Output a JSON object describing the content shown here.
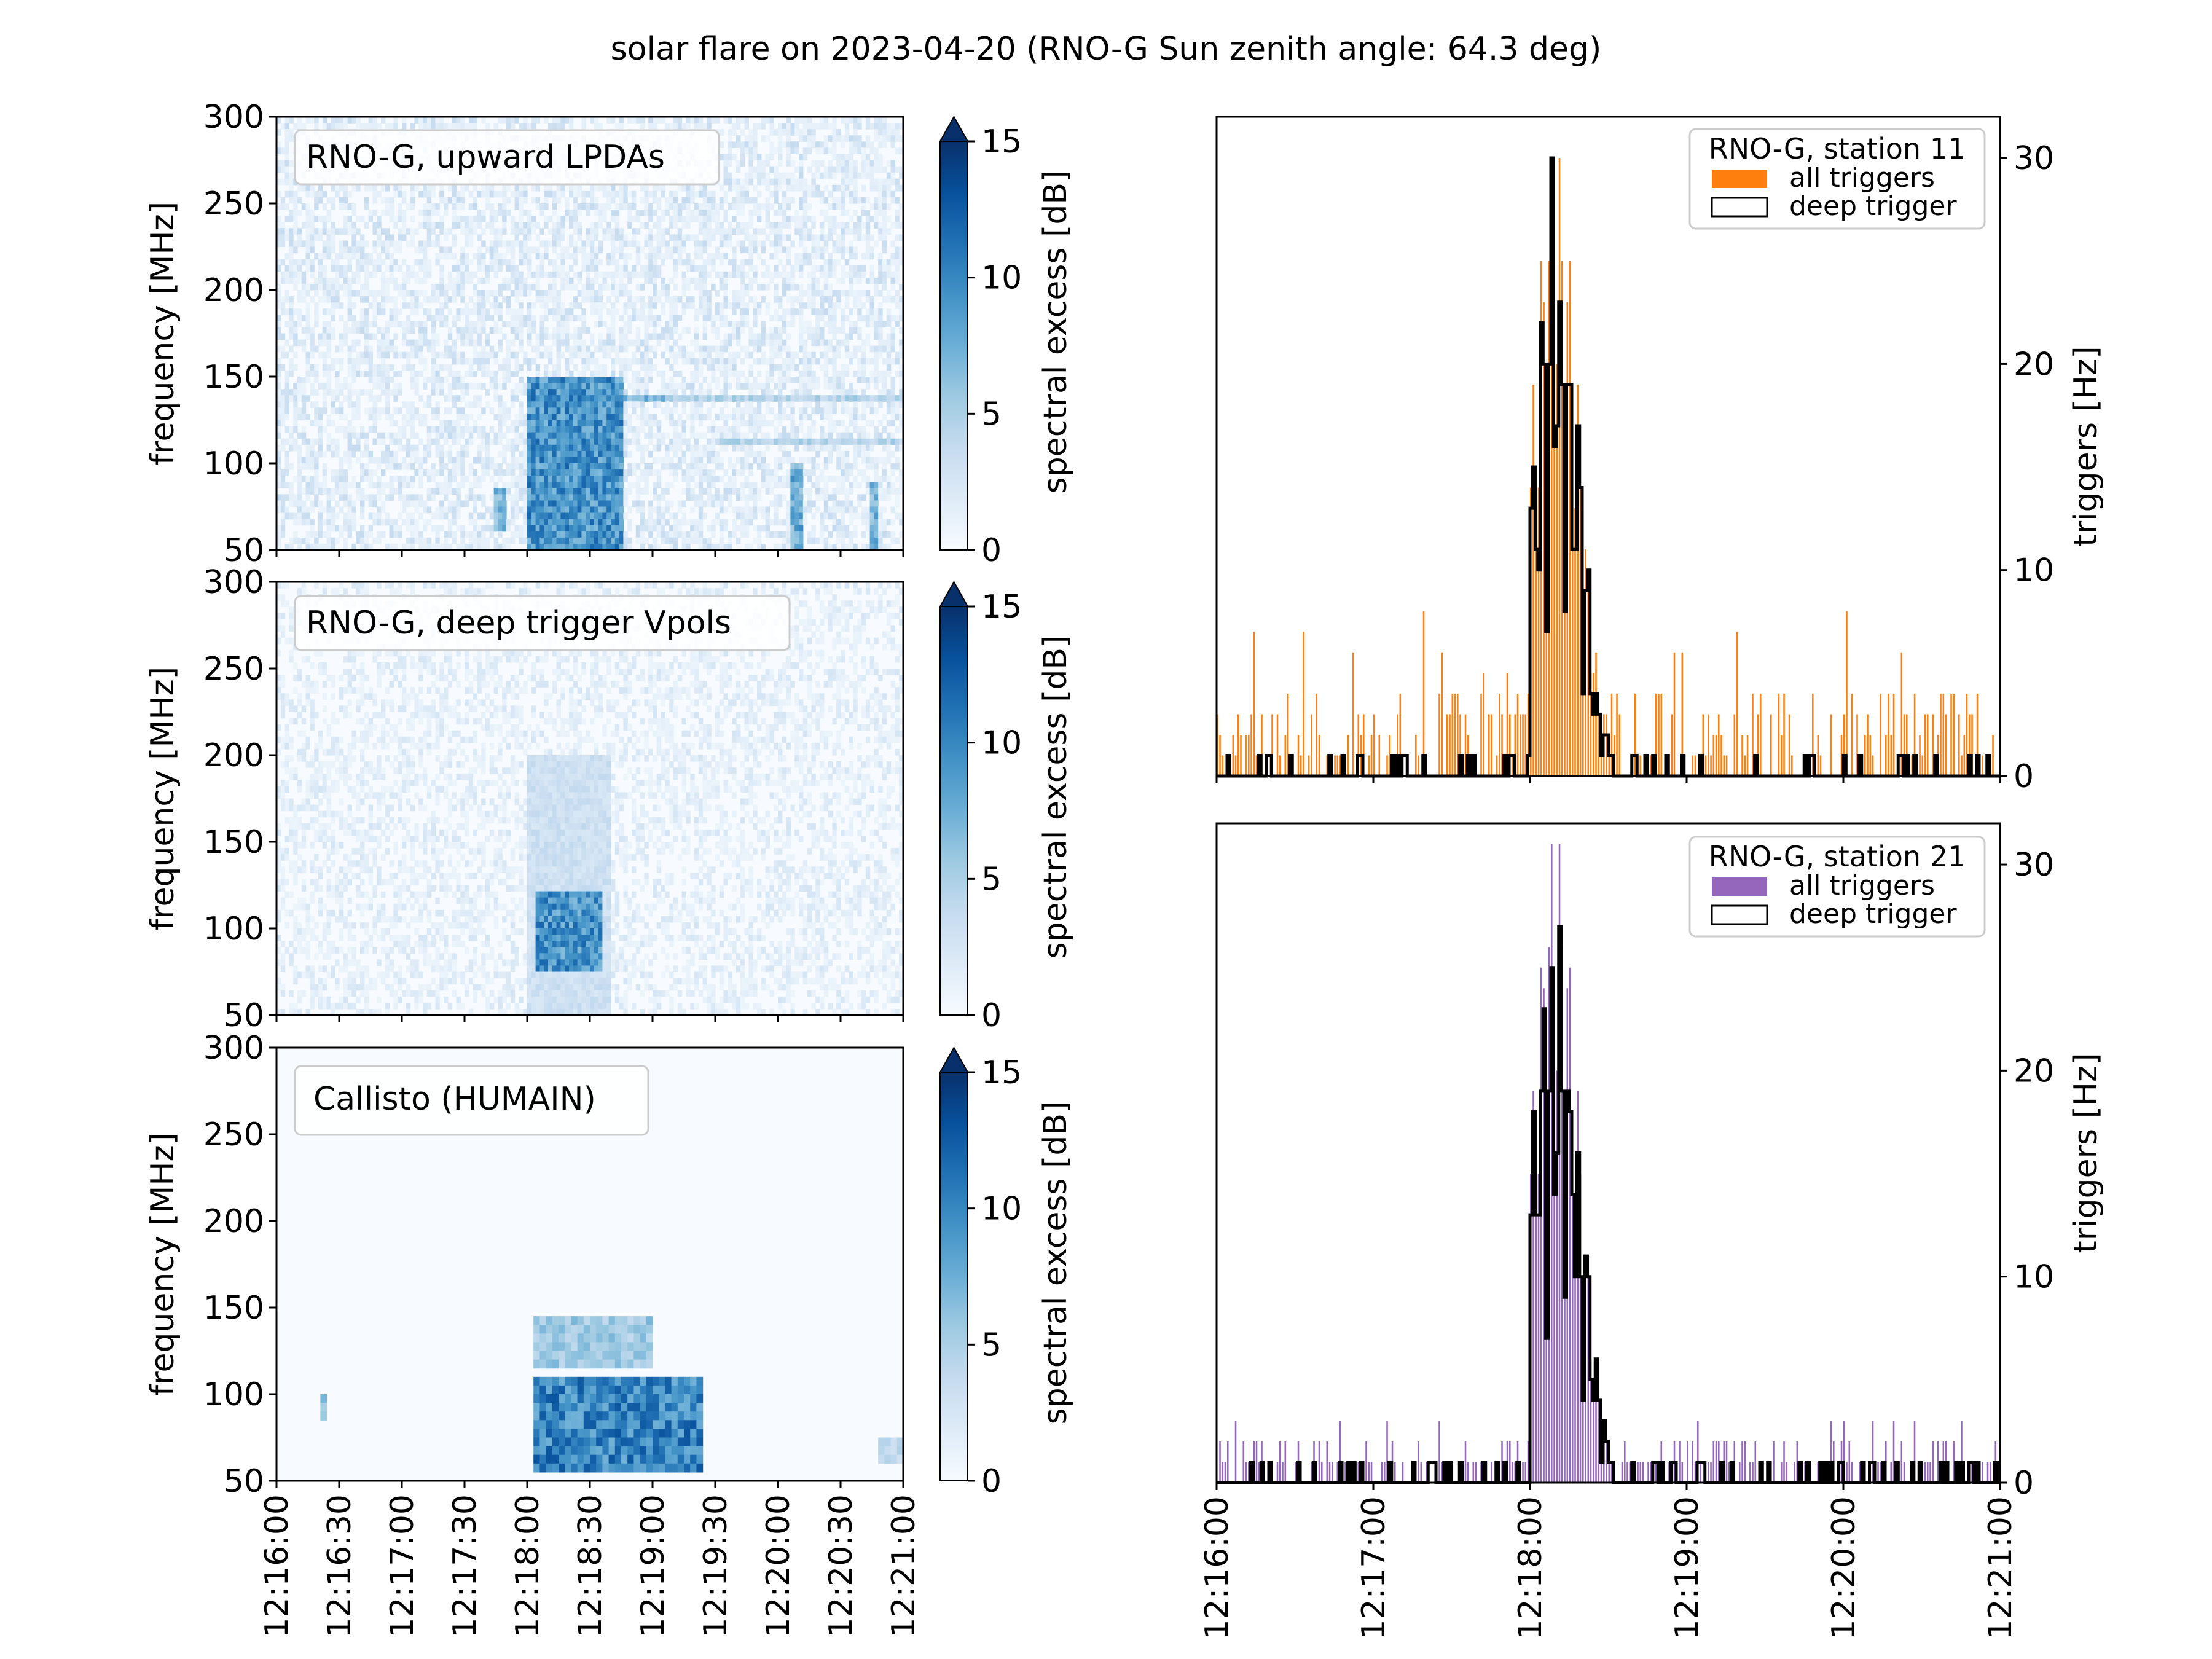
{
  "figure": {
    "title": "solar flare on 2023-04-20 (RNO-G Sun zenith angle: 64.3 deg)"
  },
  "colorbar": {
    "label": "spectral excess [dB]",
    "ticks": [
      "0",
      "5",
      "10",
      "15"
    ],
    "extend": "max",
    "colormap": [
      "#f7fbff",
      "#deebf7",
      "#c6dbef",
      "#9ecae1",
      "#6baed6",
      "#4292c6",
      "#2171b5",
      "#08519c",
      "#08306b"
    ]
  },
  "x_ticks_left": [
    "12:16:00",
    "12:16:30",
    "12:17:00",
    "12:17:30",
    "12:18:00",
    "12:18:30",
    "12:19:00",
    "12:19:30",
    "12:20:00",
    "12:20:30",
    "12:21:00"
  ],
  "x_ticks_right": [
    "12:16:00",
    "12:17:00",
    "12:18:00",
    "12:19:00",
    "12:20:00",
    "12:21:00"
  ],
  "colors": {
    "orange": "#ff7f0e",
    "purple": "#9467bd",
    "black": "#000000"
  },
  "chart_data": [
    {
      "type": "heatmap",
      "legend": "RNO-G, upward LPDAs",
      "ylabel": "frequency [MHz]",
      "xlim": [
        "12:16:00",
        "12:21:00"
      ],
      "ylim": [
        50,
        300
      ],
      "y_ticks": [
        "50",
        "100",
        "150",
        "200",
        "250",
        "300"
      ],
      "clim": [
        0,
        15
      ],
      "features": [
        {
          "t_start": "12:18:00",
          "t_end": "12:18:45",
          "f_min": 50,
          "f_max": 150,
          "level_db": 12
        },
        {
          "t_start": "12:18:00",
          "t_end": "12:19:10",
          "f_min": 138,
          "f_max": 138,
          "level_db": 9,
          "kind": "narrow line"
        },
        {
          "t_start": "12:19:00",
          "t_end": "12:21:00",
          "f_min": 138,
          "f_max": 138,
          "level_db": 6,
          "kind": "narrow line"
        },
        {
          "t_start": "12:19:30",
          "t_end": "12:21:00",
          "f_min": 113,
          "f_max": 113,
          "level_db": 6,
          "kind": "narrow line"
        },
        {
          "t_start": "12:20:07",
          "t_end": "12:20:12",
          "f_min": 50,
          "f_max": 100,
          "level_db": 10
        },
        {
          "t_start": "12:20:45",
          "t_end": "12:20:47",
          "f_min": 50,
          "f_max": 90,
          "level_db": 9
        },
        {
          "t_start": "12:17:45",
          "t_end": "12:17:50",
          "f_min": 60,
          "f_max": 85,
          "level_db": 9
        }
      ]
    },
    {
      "type": "heatmap",
      "legend": "RNO-G, deep trigger Vpols",
      "ylabel": "frequency [MHz]",
      "xlim": [
        "12:16:00",
        "12:21:00"
      ],
      "ylim": [
        50,
        300
      ],
      "y_ticks": [
        "50",
        "100",
        "150",
        "200",
        "250",
        "300"
      ],
      "clim": [
        0,
        15
      ],
      "features": [
        {
          "t_start": "12:18:05",
          "t_end": "12:18:35",
          "f_min": 75,
          "f_max": 120,
          "level_db": 12
        },
        {
          "t_start": "12:18:00",
          "t_end": "12:18:40",
          "f_min": 50,
          "f_max": 200,
          "level_db": 4
        }
      ]
    },
    {
      "type": "heatmap",
      "legend": "Callisto (HUMAIN)",
      "ylabel": "frequency [MHz]",
      "xlim": [
        "12:16:00",
        "12:21:00"
      ],
      "ylim": [
        50,
        300
      ],
      "y_ticks": [
        "50",
        "100",
        "150",
        "200",
        "250",
        "300"
      ],
      "clim": [
        0,
        15
      ],
      "features": [
        {
          "t_start": "12:18:02",
          "t_end": "12:19:25",
          "f_min": 55,
          "f_max": 110,
          "level_db": 13
        },
        {
          "t_start": "12:18:02",
          "t_end": "12:19:00",
          "f_min": 115,
          "f_max": 145,
          "level_db": 7
        },
        {
          "t_start": "12:16:20",
          "t_end": "12:16:24",
          "f_min": 85,
          "f_max": 100,
          "level_db": 9
        },
        {
          "t_start": "12:20:48",
          "t_end": "12:21:00",
          "f_min": 60,
          "f_max": 75,
          "level_db": 5
        }
      ]
    },
    {
      "type": "bar",
      "legend_title": "RNO-G, station 11",
      "series": [
        {
          "name": "all triggers",
          "color": "#ff7f0e",
          "style": "filled histogram"
        },
        {
          "name": "deep trigger",
          "color": "#000000",
          "style": "step outline"
        }
      ],
      "ylabel": "triggers [Hz]",
      "xlim": [
        "12:16:00",
        "12:21:00"
      ],
      "ylim": [
        0,
        32
      ],
      "y_ticks": [
        "0",
        "10",
        "20",
        "30"
      ],
      "peak": {
        "time": "12:18:10",
        "all_triggers_max": 31,
        "deep_trigger_max": 31
      }
    },
    {
      "type": "bar",
      "legend_title": "RNO-G, station 21",
      "series": [
        {
          "name": "all triggers",
          "color": "#9467bd",
          "style": "filled histogram"
        },
        {
          "name": "deep trigger",
          "color": "#000000",
          "style": "step outline"
        }
      ],
      "ylabel": "triggers [Hz]",
      "xlim": [
        "12:16:00",
        "12:21:00"
      ],
      "ylim": [
        0,
        32
      ],
      "y_ticks": [
        "0",
        "10",
        "20",
        "30"
      ],
      "peak": {
        "time": "12:18:10",
        "all_triggers_max": 32,
        "deep_trigger_max": 32
      }
    }
  ]
}
